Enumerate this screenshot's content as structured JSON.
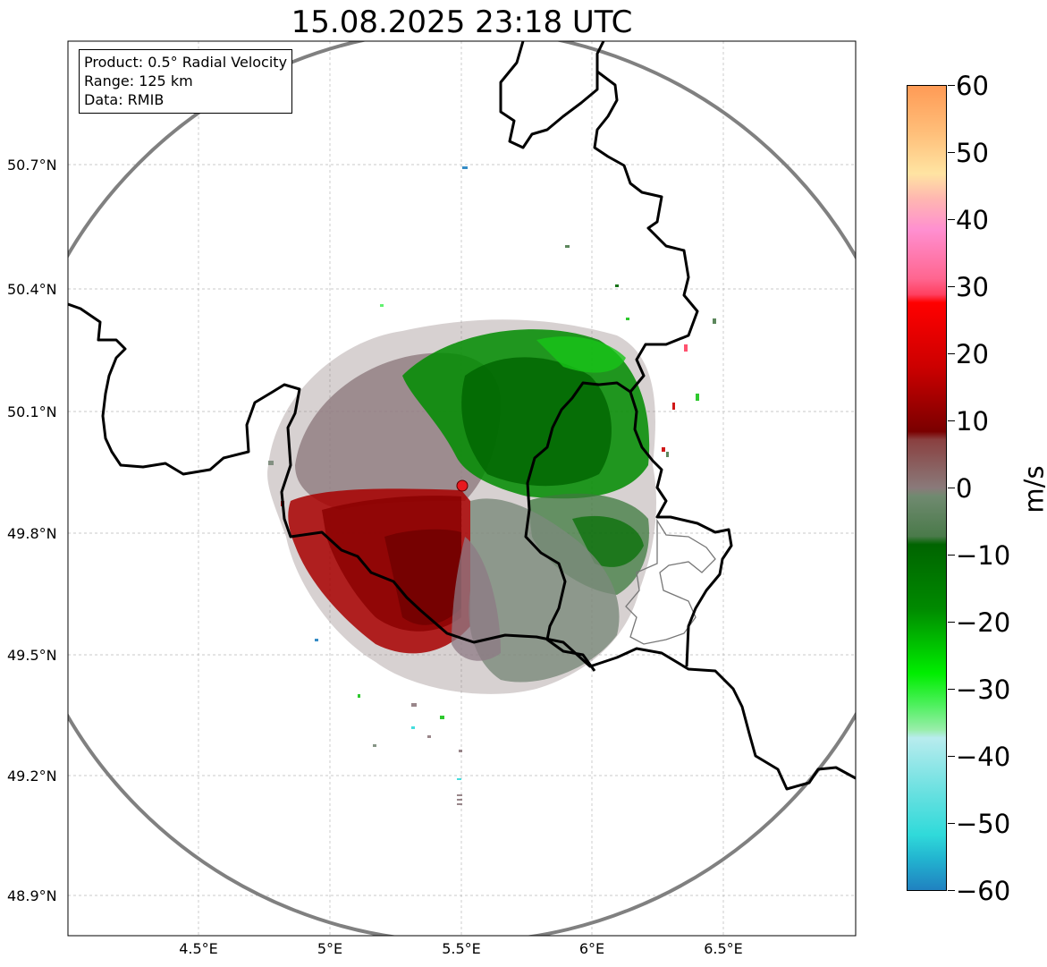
{
  "title": "15.08.2025 23:18 UTC",
  "info_box": {
    "product": "Product: 0.5° Radial Velocity",
    "range": "Range: 125 km",
    "data": "Data: RMIB"
  },
  "axes": {
    "lat_labels": [
      "50.7°N",
      "50.4°N",
      "50.1°N",
      "49.8°N",
      "49.5°N",
      "49.2°N",
      "48.9°N"
    ],
    "lon_labels": [
      "4.5°E",
      "5°E",
      "5.5°E",
      "6°E",
      "6.5°E"
    ]
  },
  "radar_site": {
    "label": "radar-site",
    "lon": 5.5,
    "lat": 49.91
  },
  "colorbar": {
    "unit": "m/s",
    "tick_labels": [
      "60",
      "50",
      "40",
      "30",
      "20",
      "10",
      "0",
      "−10",
      "−20",
      "−30",
      "−40",
      "−50",
      "−60"
    ],
    "min": -60,
    "max": 60
  },
  "colors": {
    "range_ring": "#808080",
    "border": "#000000",
    "site_marker": "#e8191e"
  }
}
